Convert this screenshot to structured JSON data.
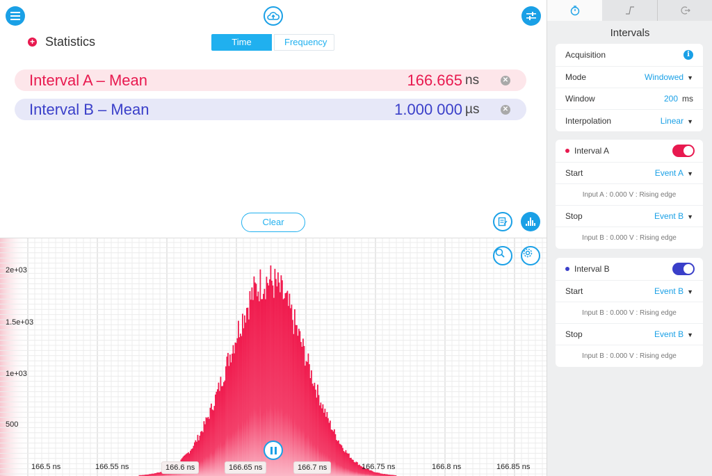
{
  "toolbar": {
    "menu_icon": "menu-icon",
    "upload_icon": "cloud-upload-icon",
    "settings_icon": "sliders-icon"
  },
  "statistics": {
    "title": "Statistics",
    "view_tabs": [
      "Time",
      "Frequency"
    ],
    "active_tab": "Time"
  },
  "measurements": [
    {
      "label": "Interval A – Mean",
      "value": "166.665",
      "unit": "ns",
      "color": "#e8194f"
    },
    {
      "label": "Interval B – Mean",
      "value": "1.000 000",
      "unit": "µs",
      "color": "#3a3fc9"
    }
  ],
  "clear_label": "Clear",
  "histogram": {
    "y_ticks": [
      "2e+03",
      "1.5e+03",
      "1e+03",
      "500"
    ],
    "x_ticks": [
      "166.5 ns",
      "166.55 ns",
      "166.6 ns",
      "166.65 ns",
      "166.7 ns",
      "166.75 ns",
      "166.8 ns",
      "166.85 ns"
    ],
    "boxed_x_ticks": [
      "166.6 ns",
      "166.65 ns",
      "166.7 ns"
    ],
    "fill_color": "#f01a4d",
    "state": "running"
  },
  "chart_data": {
    "type": "bar",
    "title": "",
    "xlabel": "",
    "ylabel": "",
    "xlim": [
      166.48,
      166.87
    ],
    "ylim": [
      0,
      2200
    ],
    "series": [
      {
        "mean": 166.665,
        "stddev": 0.029,
        "peak_count": 1900
      }
    ]
  },
  "sidebar": {
    "tabs": [
      "timer-icon",
      "pulse-edge-icon",
      "exit-icon"
    ],
    "title": "Intervals",
    "acquisition": {
      "header": "Acquisition",
      "mode_label": "Mode",
      "mode_value": "Windowed",
      "window_label": "Window",
      "window_value": "200",
      "window_unit": "ms",
      "interp_label": "Interpolation",
      "interp_value": "Linear"
    },
    "interval_a": {
      "header": "Interval A",
      "color": "#e8194f",
      "enabled": true,
      "start_label": "Start",
      "start_value": "Event A",
      "start_desc": "Input A : 0.000 V : Rising edge",
      "stop_label": "Stop",
      "stop_value": "Event B",
      "stop_desc": "Input B : 0.000 V : Rising edge"
    },
    "interval_b": {
      "header": "Interval B",
      "color": "#3a3fc9",
      "enabled": true,
      "start_label": "Start",
      "start_value": "Event B",
      "start_desc": "Input B : 0.000 V : Rising edge",
      "stop_label": "Stop",
      "stop_value": "Event B",
      "stop_desc": "Input B : 0.000 V : Rising edge"
    }
  }
}
